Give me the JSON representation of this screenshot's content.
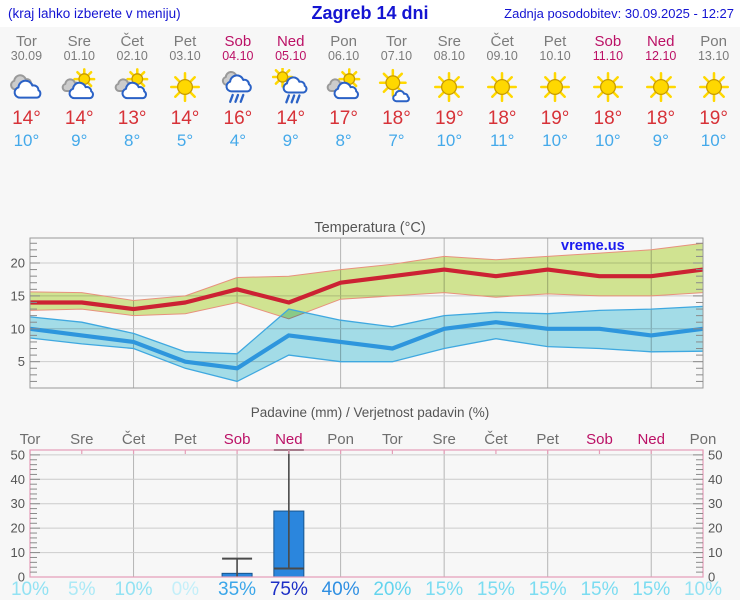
{
  "header": {
    "hint": "(kraj lahko izberete v meniju)",
    "title": "Zagreb 14 dni",
    "updated": "Zadnja posodobitev: 30.09.2025 - 12:27"
  },
  "watermark": "vreme.us",
  "days": [
    {
      "name": "Tor",
      "date": "30.09",
      "weekend": false,
      "icon": "cloudy",
      "tmax": 14,
      "tmin": 10
    },
    {
      "name": "Sre",
      "date": "01.10",
      "weekend": false,
      "icon": "partly-cloudy",
      "tmax": 14,
      "tmin": 9
    },
    {
      "name": "Čet",
      "date": "02.10",
      "weekend": false,
      "icon": "partly-cloudy",
      "tmax": 13,
      "tmin": 8
    },
    {
      "name": "Pet",
      "date": "03.10",
      "weekend": false,
      "icon": "sunny",
      "tmax": 14,
      "tmin": 5
    },
    {
      "name": "Sob",
      "date": "04.10",
      "weekend": true,
      "icon": "rain",
      "tmax": 16,
      "tmin": 4
    },
    {
      "name": "Ned",
      "date": "05.10",
      "weekend": true,
      "icon": "sun-rain",
      "tmax": 14,
      "tmin": 9
    },
    {
      "name": "Pon",
      "date": "06.10",
      "weekend": false,
      "icon": "partly-cloudy",
      "tmax": 17,
      "tmin": 8
    },
    {
      "name": "Tor",
      "date": "07.10",
      "weekend": false,
      "icon": "mostly-sunny",
      "tmax": 18,
      "tmin": 7
    },
    {
      "name": "Sre",
      "date": "08.10",
      "weekend": false,
      "icon": "sunny",
      "tmax": 19,
      "tmin": 10
    },
    {
      "name": "Čet",
      "date": "09.10",
      "weekend": false,
      "icon": "sunny",
      "tmax": 18,
      "tmin": 11
    },
    {
      "name": "Pet",
      "date": "10.10",
      "weekend": false,
      "icon": "sunny",
      "tmax": 19,
      "tmin": 10
    },
    {
      "name": "Sob",
      "date": "11.10",
      "weekend": true,
      "icon": "sunny",
      "tmax": 18,
      "tmin": 10
    },
    {
      "name": "Ned",
      "date": "12.10",
      "weekend": true,
      "icon": "sunny",
      "tmax": 18,
      "tmin": 9
    },
    {
      "name": "Pon",
      "date": "13.10",
      "weekend": false,
      "icon": "sunny",
      "tmax": 19,
      "tmin": 10
    }
  ],
  "chart_data": [
    {
      "type": "line",
      "title": "Temperatura (°C)",
      "categories": [
        "Tor",
        "Sre",
        "Čet",
        "Pet",
        "Sob",
        "Ned",
        "Pon",
        "Tor",
        "Sre",
        "Čet",
        "Pet",
        "Sob",
        "Ned",
        "Pon"
      ],
      "ylim": [
        1,
        23.8
      ],
      "yticks": [
        5,
        10,
        15,
        20
      ],
      "grid": "on",
      "series": [
        {
          "name": "tmax",
          "values": [
            14,
            14,
            13,
            14,
            16,
            14,
            17,
            18,
            19,
            18,
            19,
            18,
            18,
            19
          ]
        },
        {
          "name": "tmax_band_hi",
          "values": [
            15.6,
            15.5,
            14.3,
            15,
            17.8,
            18,
            19,
            19.8,
            21,
            20.5,
            21,
            21.5,
            22,
            23
          ]
        },
        {
          "name": "tmax_band_lo",
          "values": [
            12.8,
            13,
            12,
            12.3,
            14,
            11.5,
            14.5,
            15,
            15.5,
            14.8,
            15.3,
            15,
            15,
            15.5
          ]
        },
        {
          "name": "tmin",
          "values": [
            10,
            9,
            8,
            5,
            4,
            9,
            8,
            7,
            10,
            11,
            10,
            10,
            9,
            10
          ]
        },
        {
          "name": "tmin_band_hi",
          "values": [
            11.8,
            11,
            9.3,
            6.5,
            6.2,
            13,
            11.3,
            10.3,
            12,
            12.5,
            12.3,
            12.8,
            13,
            13.4
          ]
        },
        {
          "name": "tmin_band_lo",
          "values": [
            8.6,
            7.7,
            7,
            4,
            2,
            6,
            5,
            5,
            7,
            8.5,
            7.3,
            7,
            6.5,
            6.6
          ]
        }
      ]
    },
    {
      "type": "bar",
      "title": "Padavine (mm) / Verjetnost padavin (%)",
      "categories": [
        "Tor",
        "Sre",
        "Čet",
        "Pet",
        "Sob",
        "Ned",
        "Pon",
        "Tor",
        "Sre",
        "Čet",
        "Pet",
        "Sob",
        "Ned",
        "Pon"
      ],
      "ylim": [
        0,
        52
      ],
      "yticks": [
        0,
        10,
        20,
        30,
        40,
        50
      ],
      "values": [
        0,
        0,
        0,
        0,
        1.5,
        27,
        0,
        0,
        0,
        0,
        0,
        0,
        0,
        0
      ],
      "whiskers": [
        {
          "day": 4,
          "lo": 0,
          "hi": 7.5,
          "cap_lo": false,
          "cap_hi": true
        },
        {
          "day": 5,
          "lo": 3.5,
          "hi": 52,
          "cap_lo": true,
          "cap_hi": true
        }
      ],
      "probabilities": [
        "10%",
        "5%",
        "10%",
        "0%",
        "35%",
        "75%",
        "40%",
        "20%",
        "15%",
        "15%",
        "15%",
        "15%",
        "15%",
        "10%"
      ]
    }
  ],
  "colors": {
    "link": "#1414d2",
    "weekday": "#7b7b7b",
    "weekend": "#bb1166",
    "tmax_text": "#d73238",
    "tmin_text": "#44a9ea",
    "tmax_line": "#cc2233",
    "tmax_band": "#d7eb96",
    "tmax_band_edge": "#e8917d",
    "tmin_line": "#2e96dd",
    "tmin_band": "#a8e3ef",
    "tmin_band_edge": "#3fa8e0",
    "bar_fill": "#2b86dd",
    "bar_edge": "#17558e",
    "whisker": "#4a4a4a",
    "grid_h": "#cccccc",
    "grid_v": "#b5b5b5",
    "frame_gray": "#9a9a9a",
    "frame_pink": "#e59db8",
    "tick": "#8a8a8a",
    "axis_text": "#555555",
    "watermark_blue": "#1b1bf0",
    "icon_sun": "#ffd800",
    "icon_sun_edge": "#c79a00",
    "icon_cloud_edge": "#2b62c6",
    "icon_cloud_gray": "#cccccc",
    "icon_cloud_gray_edge": "#9a9a9a",
    "prob_colors": {
      "0%": "#c4eff9",
      "5%": "#abe9f6",
      "10%": "#92e2f3",
      "15%": "#7bdcf1",
      "20%": "#63d4ee",
      "35%": "#3aa6e9",
      "40%": "#2f8fe2",
      "75%": "#1c2fc6"
    }
  }
}
